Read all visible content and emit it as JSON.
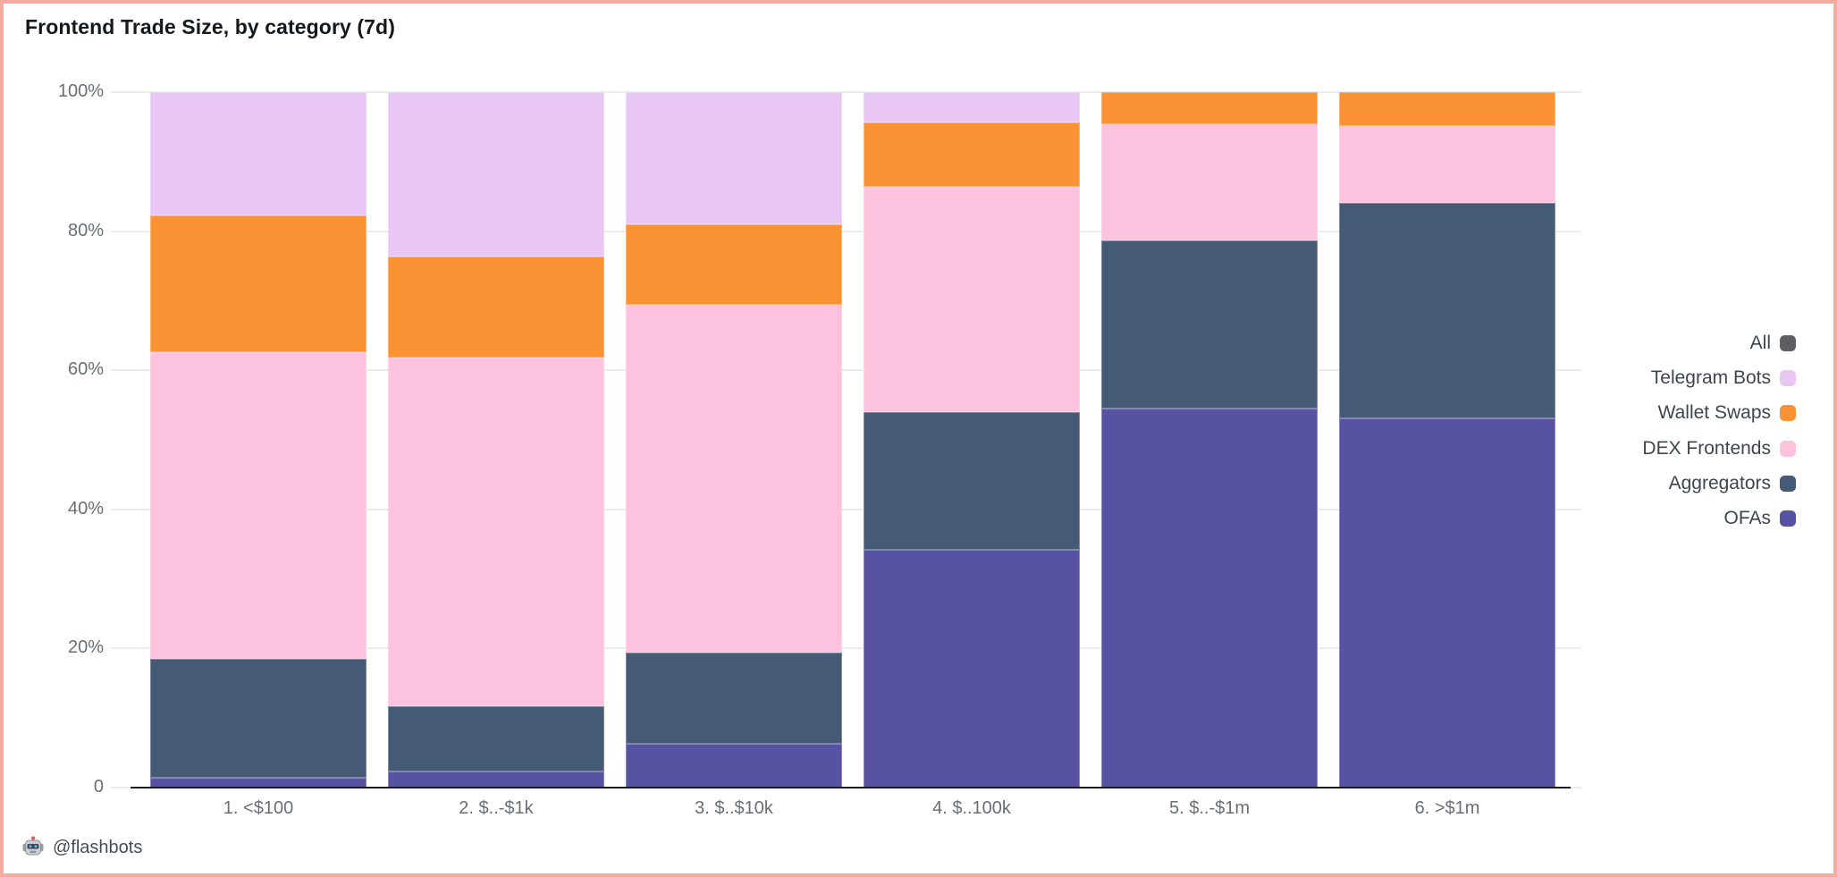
{
  "title": "Frontend Trade Size, by category (7d)",
  "footer": {
    "icon": "flashbots-robot",
    "handle": "@flashbots"
  },
  "frame_border_color": "#f6aba0",
  "chart_data": {
    "type": "bar",
    "stacked": true,
    "unit": "%",
    "title": "Frontend Trade Size, by category (7d)",
    "xlabel": "",
    "ylabel": "",
    "ylim": [
      0,
      100
    ],
    "grid": true,
    "legend_position": "right",
    "categories": [
      "1. <$100",
      "2. $..-$1k",
      "3. $..$10k",
      "4. $..100k",
      "5. $..-$1m",
      "6. >$1m"
    ],
    "y_ticks": [
      {
        "label": "100%",
        "value": 100
      },
      {
        "label": "80%",
        "value": 80
      },
      {
        "label": "60%",
        "value": 60
      },
      {
        "label": "40%",
        "value": 40
      },
      {
        "label": "20%",
        "value": 20
      },
      {
        "label": "0",
        "value": 0
      }
    ],
    "series": [
      {
        "name": "All",
        "color": "#5d5f63",
        "legend_only": true,
        "values": [
          0,
          0,
          0,
          0,
          0,
          0
        ]
      },
      {
        "name": "Telegram Bots",
        "color": "#e9c6f4",
        "legend_only": false,
        "values": [
          17.7,
          23.7,
          19.0,
          4.4,
          0,
          0
        ]
      },
      {
        "name": "Wallet Swaps",
        "color": "#fb9334",
        "legend_only": false,
        "values": [
          19.7,
          14.5,
          11.6,
          9.2,
          4.6,
          4.9
        ]
      },
      {
        "name": "DEX Frontends",
        "color": "#fdc2dd",
        "legend_only": false,
        "values": [
          44.1,
          50.2,
          50.1,
          32.5,
          16.8,
          11.1
        ]
      },
      {
        "name": "Aggregators",
        "color": "#455a75",
        "legend_only": false,
        "values": [
          17.2,
          9.3,
          13.0,
          19.8,
          24.1,
          30.9
        ]
      },
      {
        "name": "OFAs",
        "color": "#5753a2",
        "legend_only": false,
        "values": [
          1.3,
          2.3,
          6.3,
          34.1,
          54.5,
          53.1
        ]
      }
    ]
  }
}
